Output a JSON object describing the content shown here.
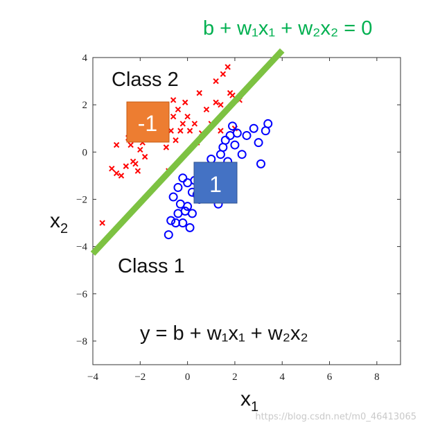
{
  "chart_data": {
    "type": "scatter",
    "xlim": [
      -4,
      9
    ],
    "ylim": [
      -9,
      4
    ],
    "xticks": [
      "−4",
      "−2",
      "0",
      "2",
      "4",
      "6",
      "8"
    ],
    "yticks": [
      "4",
      "2",
      "0",
      "−2",
      "−4",
      "−6",
      "−8"
    ],
    "xlabel": "x",
    "xlabel_sub": "1",
    "ylabel": "x",
    "ylabel_sub": "2",
    "series": [
      {
        "marker": "cross",
        "color": "#ff0000",
        "points": [
          [
            -3.6,
            -3.0
          ],
          [
            -3.2,
            -0.7
          ],
          [
            -3.0,
            -0.9
          ],
          [
            -3.0,
            0.3
          ],
          [
            -2.8,
            -1.0
          ],
          [
            -2.6,
            -0.6
          ],
          [
            -2.5,
            0.6
          ],
          [
            -2.4,
            0.3
          ],
          [
            -2.2,
            -0.5
          ],
          [
            -2.1,
            -0.8
          ],
          [
            -2.0,
            0.1
          ],
          [
            -1.9,
            0.4
          ],
          [
            -1.8,
            -0.2
          ],
          [
            -1.8,
            1.0
          ],
          [
            -1.5,
            1.2
          ],
          [
            -1.2,
            1.6
          ],
          [
            -1.0,
            0.8
          ],
          [
            -0.9,
            0.2
          ],
          [
            -0.8,
            -0.8
          ],
          [
            -0.7,
            0.9
          ],
          [
            -0.6,
            1.5
          ],
          [
            -0.6,
            2.2
          ],
          [
            -0.5,
            0.5
          ],
          [
            -0.4,
            1.8
          ],
          [
            -0.3,
            0.9
          ],
          [
            -0.2,
            1.2
          ],
          [
            -0.1,
            2.1
          ],
          [
            0.0,
            1.5
          ],
          [
            0.1,
            0.9
          ],
          [
            0.3,
            1.2
          ],
          [
            0.4,
            0.4
          ],
          [
            0.5,
            2.5
          ],
          [
            0.6,
            0.8
          ],
          [
            0.8,
            1.8
          ],
          [
            1.0,
            1.2
          ],
          [
            1.2,
            2.1
          ],
          [
            1.4,
            2.0
          ],
          [
            1.5,
            3.3
          ],
          [
            1.7,
            3.6
          ],
          [
            1.8,
            2.5
          ],
          [
            1.9,
            2.4
          ],
          [
            2.0,
            1.0
          ],
          [
            1.4,
            0.9
          ],
          [
            2.2,
            2.2
          ],
          [
            1.2,
            3.0
          ],
          [
            -2.3,
            -0.4
          ]
        ]
      },
      {
        "marker": "circle",
        "color": "#0000ff",
        "points": [
          [
            -0.8,
            -3.5
          ],
          [
            -0.7,
            -2.9
          ],
          [
            -0.5,
            -3.0
          ],
          [
            -0.4,
            -2.6
          ],
          [
            -0.3,
            -2.2
          ],
          [
            -0.2,
            -3.0
          ],
          [
            -0.1,
            -2.5
          ],
          [
            0.0,
            -2.3
          ],
          [
            0.1,
            -3.2
          ],
          [
            0.2,
            -2.6
          ],
          [
            0.3,
            -1.2
          ],
          [
            0.4,
            -1.8
          ],
          [
            0.5,
            -2.0
          ],
          [
            0.6,
            -1.4
          ],
          [
            0.8,
            -1.0
          ],
          [
            0.9,
            -0.6
          ],
          [
            1.0,
            -0.3
          ],
          [
            1.1,
            -0.8
          ],
          [
            1.2,
            -1.5
          ],
          [
            1.3,
            -2.2
          ],
          [
            1.4,
            -0.1
          ],
          [
            1.5,
            0.2
          ],
          [
            1.6,
            0.5
          ],
          [
            1.7,
            -0.4
          ],
          [
            1.8,
            0.7
          ],
          [
            1.9,
            1.1
          ],
          [
            2.0,
            0.3
          ],
          [
            2.1,
            0.8
          ],
          [
            2.3,
            -0.1
          ],
          [
            2.5,
            0.7
          ],
          [
            2.8,
            1.0
          ],
          [
            3.0,
            0.4
          ],
          [
            3.1,
            -0.5
          ],
          [
            3.3,
            0.9
          ],
          [
            3.4,
            1.2
          ],
          [
            -0.4,
            -1.5
          ],
          [
            -0.2,
            -1.1
          ],
          [
            0.0,
            -1.3
          ],
          [
            0.2,
            -1.7
          ],
          [
            -0.6,
            -1.9
          ]
        ]
      }
    ],
    "boundary": {
      "from": [
        -4.0,
        -4.3
      ],
      "to": [
        4.0,
        4.3
      ],
      "color": "#7dc242"
    },
    "annotations": {
      "class2": "Class 2",
      "class1": "Class 1",
      "label_neg": "-1",
      "label_pos": "1",
      "label_neg_color": "#ed7d31",
      "label_pos_color": "#4472c4",
      "boundary_eq": "b + w₁x₁ + w₂x₂ = 0",
      "boundary_eq_color": "#00b050",
      "model_eq": "y = b + w₁x₁ + w₂x₂"
    }
  },
  "watermark": "https://blog.csdn.net/m0_46413065"
}
